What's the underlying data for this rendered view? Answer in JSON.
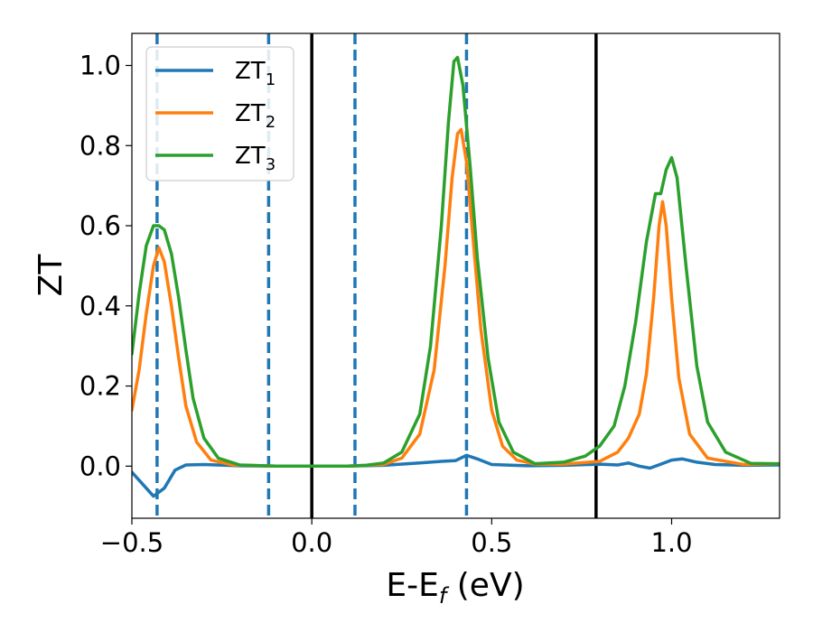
{
  "chart_data": {
    "type": "line",
    "title": "",
    "xlabel": {
      "main": "E-E",
      "sub": "f",
      "unit": " (eV)"
    },
    "ylabel": "ZT",
    "xlim": [
      -0.5,
      1.3
    ],
    "ylim": [
      -0.13,
      1.08
    ],
    "x_ticks": [
      -0.5,
      0.0,
      0.5,
      1.0
    ],
    "x_tick_labels": [
      "−0.5",
      "0.0",
      "0.5",
      "1.0"
    ],
    "y_ticks": [
      0.0,
      0.2,
      0.4,
      0.6,
      0.8,
      1.0
    ],
    "y_tick_labels": [
      "0.0",
      "0.2",
      "0.4",
      "0.6",
      "0.8",
      "1.0"
    ],
    "grid": false,
    "legend_position": "top-left",
    "solid_vlines": [
      0.0,
      0.79
    ],
    "dashed_vlines": [
      -0.43,
      -0.12,
      0.12,
      0.43
    ],
    "vline_colors": {
      "solid": "#000000",
      "dashed": "#1f77b4"
    },
    "series": [
      {
        "name": "ZT",
        "sub": "1",
        "color": "#1f77b4",
        "points": [
          [
            -0.5,
            -0.015
          ],
          [
            -0.47,
            -0.045
          ],
          [
            -0.44,
            -0.075
          ],
          [
            -0.41,
            -0.055
          ],
          [
            -0.38,
            -0.01
          ],
          [
            -0.35,
            0.003
          ],
          [
            -0.3,
            0.004
          ],
          [
            -0.2,
            0.001
          ],
          [
            -0.1,
            0.0
          ],
          [
            0.0,
            0.0
          ],
          [
            0.1,
            0.0
          ],
          [
            0.2,
            0.002
          ],
          [
            0.3,
            0.008
          ],
          [
            0.36,
            0.012
          ],
          [
            0.4,
            0.014
          ],
          [
            0.43,
            0.027
          ],
          [
            0.46,
            0.018
          ],
          [
            0.5,
            0.004
          ],
          [
            0.6,
            0.001
          ],
          [
            0.7,
            0.002
          ],
          [
            0.8,
            0.005
          ],
          [
            0.85,
            0.003
          ],
          [
            0.88,
            0.008
          ],
          [
            0.91,
            0.0
          ],
          [
            0.94,
            -0.005
          ],
          [
            0.97,
            0.005
          ],
          [
            1.0,
            0.015
          ],
          [
            1.03,
            0.018
          ],
          [
            1.07,
            0.01
          ],
          [
            1.12,
            0.004
          ],
          [
            1.2,
            0.002
          ],
          [
            1.3,
            0.003
          ]
        ]
      },
      {
        "name": "ZT",
        "sub": "2",
        "color": "#ff7f0e",
        "points": [
          [
            -0.5,
            0.14
          ],
          [
            -0.48,
            0.24
          ],
          [
            -0.46,
            0.38
          ],
          [
            -0.44,
            0.5
          ],
          [
            -0.425,
            0.545
          ],
          [
            -0.41,
            0.51
          ],
          [
            -0.39,
            0.4
          ],
          [
            -0.37,
            0.27
          ],
          [
            -0.35,
            0.15
          ],
          [
            -0.32,
            0.06
          ],
          [
            -0.28,
            0.015
          ],
          [
            -0.22,
            0.003
          ],
          [
            -0.1,
            0.0
          ],
          [
            0.0,
            0.0
          ],
          [
            0.1,
            0.0
          ],
          [
            0.2,
            0.004
          ],
          [
            0.25,
            0.02
          ],
          [
            0.3,
            0.08
          ],
          [
            0.34,
            0.24
          ],
          [
            0.37,
            0.5
          ],
          [
            0.39,
            0.72
          ],
          [
            0.405,
            0.83
          ],
          [
            0.415,
            0.84
          ],
          [
            0.43,
            0.76
          ],
          [
            0.45,
            0.55
          ],
          [
            0.47,
            0.34
          ],
          [
            0.5,
            0.14
          ],
          [
            0.53,
            0.05
          ],
          [
            0.57,
            0.015
          ],
          [
            0.62,
            0.005
          ],
          [
            0.7,
            0.005
          ],
          [
            0.8,
            0.012
          ],
          [
            0.85,
            0.035
          ],
          [
            0.88,
            0.07
          ],
          [
            0.91,
            0.13
          ],
          [
            0.93,
            0.23
          ],
          [
            0.95,
            0.42
          ],
          [
            0.965,
            0.6
          ],
          [
            0.975,
            0.66
          ],
          [
            0.985,
            0.6
          ],
          [
            1.0,
            0.42
          ],
          [
            1.02,
            0.22
          ],
          [
            1.05,
            0.08
          ],
          [
            1.1,
            0.02
          ],
          [
            1.2,
            0.004
          ],
          [
            1.3,
            0.006
          ]
        ]
      },
      {
        "name": "ZT",
        "sub": "3",
        "color": "#2ca02c",
        "points": [
          [
            -0.5,
            0.28
          ],
          [
            -0.48,
            0.43
          ],
          [
            -0.46,
            0.55
          ],
          [
            -0.44,
            0.6
          ],
          [
            -0.425,
            0.6
          ],
          [
            -0.41,
            0.59
          ],
          [
            -0.39,
            0.53
          ],
          [
            -0.37,
            0.42
          ],
          [
            -0.35,
            0.29
          ],
          [
            -0.33,
            0.17
          ],
          [
            -0.3,
            0.07
          ],
          [
            -0.26,
            0.02
          ],
          [
            -0.2,
            0.003
          ],
          [
            -0.1,
            0.0
          ],
          [
            0.0,
            0.0
          ],
          [
            0.1,
            0.0
          ],
          [
            0.15,
            0.002
          ],
          [
            0.2,
            0.008
          ],
          [
            0.25,
            0.035
          ],
          [
            0.3,
            0.13
          ],
          [
            0.33,
            0.3
          ],
          [
            0.36,
            0.6
          ],
          [
            0.38,
            0.86
          ],
          [
            0.395,
            1.01
          ],
          [
            0.405,
            1.02
          ],
          [
            0.42,
            0.95
          ],
          [
            0.44,
            0.75
          ],
          [
            0.46,
            0.52
          ],
          [
            0.49,
            0.27
          ],
          [
            0.52,
            0.11
          ],
          [
            0.56,
            0.035
          ],
          [
            0.62,
            0.006
          ],
          [
            0.7,
            0.01
          ],
          [
            0.76,
            0.025
          ],
          [
            0.8,
            0.05
          ],
          [
            0.84,
            0.1
          ],
          [
            0.87,
            0.2
          ],
          [
            0.9,
            0.36
          ],
          [
            0.93,
            0.56
          ],
          [
            0.955,
            0.68
          ],
          [
            0.97,
            0.68
          ],
          [
            0.985,
            0.74
          ],
          [
            1.0,
            0.77
          ],
          [
            1.015,
            0.72
          ],
          [
            1.04,
            0.5
          ],
          [
            1.07,
            0.25
          ],
          [
            1.1,
            0.11
          ],
          [
            1.15,
            0.035
          ],
          [
            1.22,
            0.007
          ],
          [
            1.3,
            0.006
          ]
        ]
      }
    ]
  }
}
